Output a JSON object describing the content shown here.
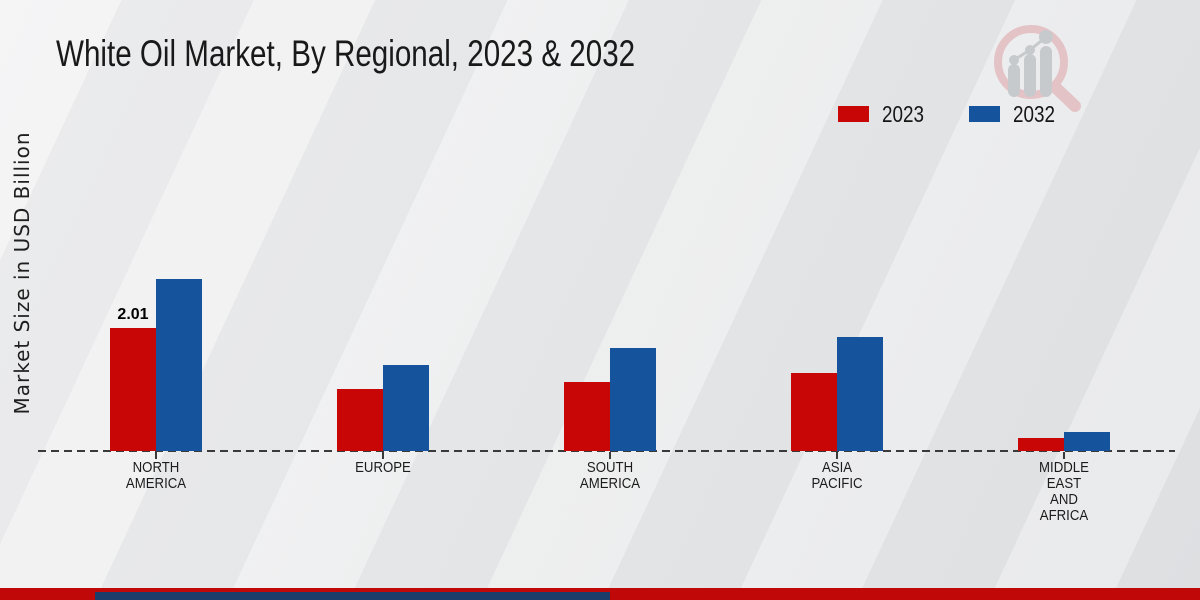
{
  "page": {
    "background": "#eaebec",
    "footer": {
      "red_band_color": "#c10808",
      "navy_band_color": "#1c3c69"
    }
  },
  "logo": {
    "description": "magnifier-growth-chart-watermark",
    "glass_color": "#e4c3c6",
    "bars_color": "#c7cacd"
  },
  "chart_data": {
    "type": "bar",
    "title": "White Oil Market, By Regional, 2023 & 2032",
    "ylabel": "Market Size in USD Billion",
    "xlabel": "",
    "categories": [
      "NORTH AMERICA",
      "EUROPE",
      "SOUTH AMERICA",
      "ASIA PACIFIC",
      "MIDDLE EAST AND AFRICA"
    ],
    "category_display": [
      "NORTH\nAMERICA",
      "EUROPE",
      "SOUTH\nAMERICA",
      "ASIA\nPACIFIC",
      "MIDDLE\nEAST\nAND\nAFRICA"
    ],
    "series": [
      {
        "name": "2023",
        "color": "#c80606",
        "values": [
          2.01,
          1.01,
          1.13,
          1.27,
          0.21
        ]
      },
      {
        "name": "2032",
        "color": "#15549d",
        "values": [
          2.81,
          1.4,
          1.68,
          1.86,
          0.31
        ]
      }
    ],
    "data_labels": [
      {
        "series": 0,
        "category": 0,
        "text": "2.01"
      }
    ],
    "ylim": [
      0,
      3.2
    ],
    "grid": false,
    "legend_position": "top-right",
    "baseline_style": "dashed"
  }
}
